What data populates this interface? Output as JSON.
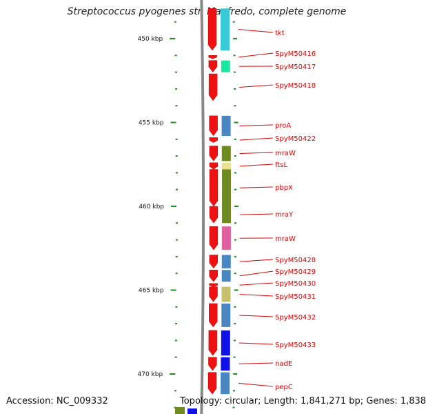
{
  "title": "Streptococcus pyogenes str. Manfredo, complete genome",
  "accession": "Accession: NC_009332",
  "topology_info": "Topology: circular; Length: 1,841,271 bp; Genes: 1,838",
  "scale_labels": [
    {
      "label": "450 kbp",
      "kbp": 450
    },
    {
      "label": "455 kbp",
      "kbp": 455
    },
    {
      "label": "460 kbp",
      "kbp": 460
    },
    {
      "label": "465 kbp",
      "kbp": 465
    },
    {
      "label": "470 kbp",
      "kbp": 470
    }
  ],
  "genes": [
    {
      "name": "tkt",
      "start_kbp": 448.2,
      "end_kbp": 450.7,
      "cog_color": "#38c8d8"
    },
    {
      "name": "SpyM50416",
      "start_kbp": 451.0,
      "end_kbp": 451.2,
      "cog_color": "#ffffff"
    },
    {
      "name": "SpyM50417",
      "start_kbp": 451.3,
      "end_kbp": 452.0,
      "cog_color": "#19e8a0"
    },
    {
      "name": "SpyM50418",
      "start_kbp": 452.1,
      "end_kbp": 453.7,
      "cog_color": "#ffffff"
    },
    {
      "name": "proA",
      "start_kbp": 454.6,
      "end_kbp": 455.8,
      "cog_color": "#4a86c0"
    },
    {
      "name": "SpyM50422",
      "start_kbp": 455.9,
      "end_kbp": 456.2,
      "cog_color": "#ffffff"
    },
    {
      "name": "mraW",
      "start_kbp": 456.4,
      "end_kbp": 457.3,
      "cog_color": "#6e8a20"
    },
    {
      "name": "ftsL",
      "start_kbp": 457.4,
      "end_kbp": 457.8,
      "cog_color": "#ece090"
    },
    {
      "name": "pbpX",
      "start_kbp": 457.8,
      "end_kbp": 460.0,
      "cog_color": "#6e8a20"
    },
    {
      "name": "mraY",
      "start_kbp": 460.0,
      "end_kbp": 461.0,
      "cog_color": "#6e8a20"
    },
    {
      "name": "mraW",
      "start_kbp": 461.2,
      "end_kbp": 462.6,
      "cog_color": "#e060a0"
    },
    {
      "name": "SpyM50428",
      "start_kbp": 462.9,
      "end_kbp": 463.7,
      "cog_color": "#4a86c0"
    },
    {
      "name": "SpyM50429",
      "start_kbp": 463.8,
      "end_kbp": 464.5,
      "cog_color": "#4a86c0"
    },
    {
      "name": "SpyM50430",
      "start_kbp": 464.6,
      "end_kbp": 464.8,
      "cog_color": "#ffffff"
    },
    {
      "name": "SpyM50431",
      "start_kbp": 464.8,
      "end_kbp": 465.7,
      "cog_color": "#c8c070"
    },
    {
      "name": "SpyM50432",
      "start_kbp": 465.8,
      "end_kbp": 467.2,
      "cog_color": "#4a86c0"
    },
    {
      "name": "SpyM50433",
      "start_kbp": 467.4,
      "end_kbp": 468.9,
      "cog_color": "#1010e8"
    },
    {
      "name": "nadE",
      "start_kbp": 469.0,
      "end_kbp": 469.8,
      "cog_color": "#1010e8"
    },
    {
      "name": "pepC",
      "start_kbp": 469.9,
      "end_kbp": 471.2,
      "cog_color": "#4a86c0"
    }
  ],
  "colors": {
    "gene_red": "#ee1111",
    "label_red": "#dd0000",
    "tick_green": "#228822",
    "backbone_gray": "#888888"
  }
}
